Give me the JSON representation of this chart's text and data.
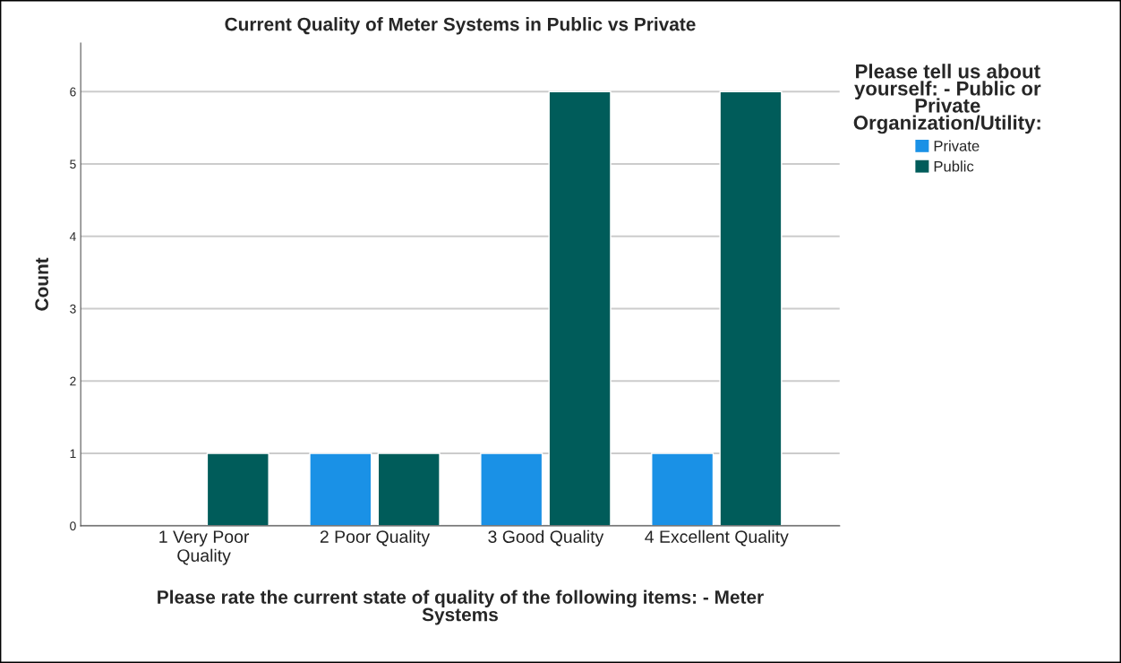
{
  "chart_data": {
    "type": "bar",
    "title": "Current Quality of Meter Systems in Public vs Private",
    "xlabel": "Please rate the current state of quality of the following items: - Meter\nSystems",
    "ylabel": "Count",
    "legend_title": "Please tell us about\nyourself: - Public or\nPrivate\nOrganization/Utility:",
    "categories": [
      "1 Very Poor\nQuality",
      "2 Poor Quality",
      "3 Good Quality",
      "4 Excellent Quality"
    ],
    "series": [
      {
        "name": "Private",
        "color": "#1a91e6",
        "values": [
          null,
          1,
          1,
          1
        ]
      },
      {
        "name": "Public",
        "color": "#005c5a",
        "values": [
          1,
          1,
          6,
          6
        ]
      }
    ],
    "ylim": [
      0,
      6.67
    ],
    "yticks": [
      0,
      1,
      2,
      3,
      4,
      5,
      6
    ],
    "grid": "y",
    "legend": "right"
  }
}
